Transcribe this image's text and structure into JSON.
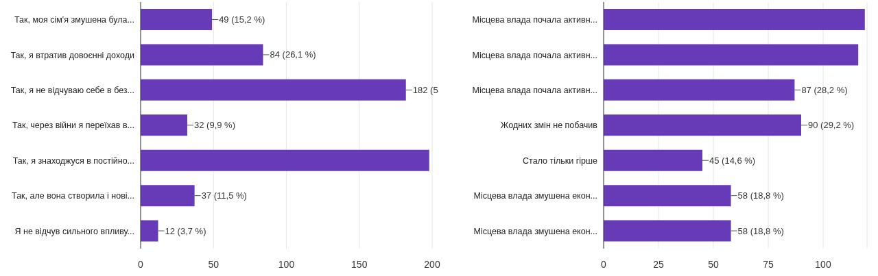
{
  "chart_data": [
    {
      "type": "bar",
      "orientation": "horizontal",
      "categories": [
        "Так, моя сім'я змушена була...",
        "Так, я втратив довоєнні доходи",
        "Так, я не відчуваю себе в без...",
        "Так, через війни я переїхав в...",
        "Так, я знаходжуся в постійно...",
        "Так, але вона створила і нові...",
        "Я не відчув сильного впливу..."
      ],
      "values": [
        49,
        84,
        182,
        32,
        198,
        37,
        12
      ],
      "color": "#673ab7",
      "value_labels": [
        "49 (15,2 %)",
        "84 (26,1 %)",
        "182 (5",
        "32 (9,9 %)",
        null,
        "37 (11,5 %)",
        "12 (3,7 %)"
      ],
      "xlim": [
        0,
        200
      ],
      "xticks": [
        0,
        50,
        100,
        150,
        200
      ],
      "grid": "x",
      "legend": false
    },
    {
      "type": "bar",
      "orientation": "horizontal",
      "categories": [
        "Місцева влада почала активн...",
        "Місцева влада почала активн...",
        "Місцева влада почала активн...",
        "Жодних змін не побачив",
        "Стало тільки гірше",
        "Місцева влада змушена екон...",
        "Місцева влада змушена екон..."
      ],
      "values": [
        119,
        116,
        87,
        90,
        45,
        58,
        58
      ],
      "color": "#673ab7",
      "value_labels": [
        null,
        null,
        "87 (28,2 %)",
        "90 (29,2 %)",
        "45 (14,6 %)",
        "58 (18,8 %)",
        "58 (18,8 %)"
      ],
      "xlim": [
        0,
        120
      ],
      "xticks": [
        0,
        25,
        50,
        75,
        100
      ],
      "grid": "x",
      "legend": false
    }
  ]
}
